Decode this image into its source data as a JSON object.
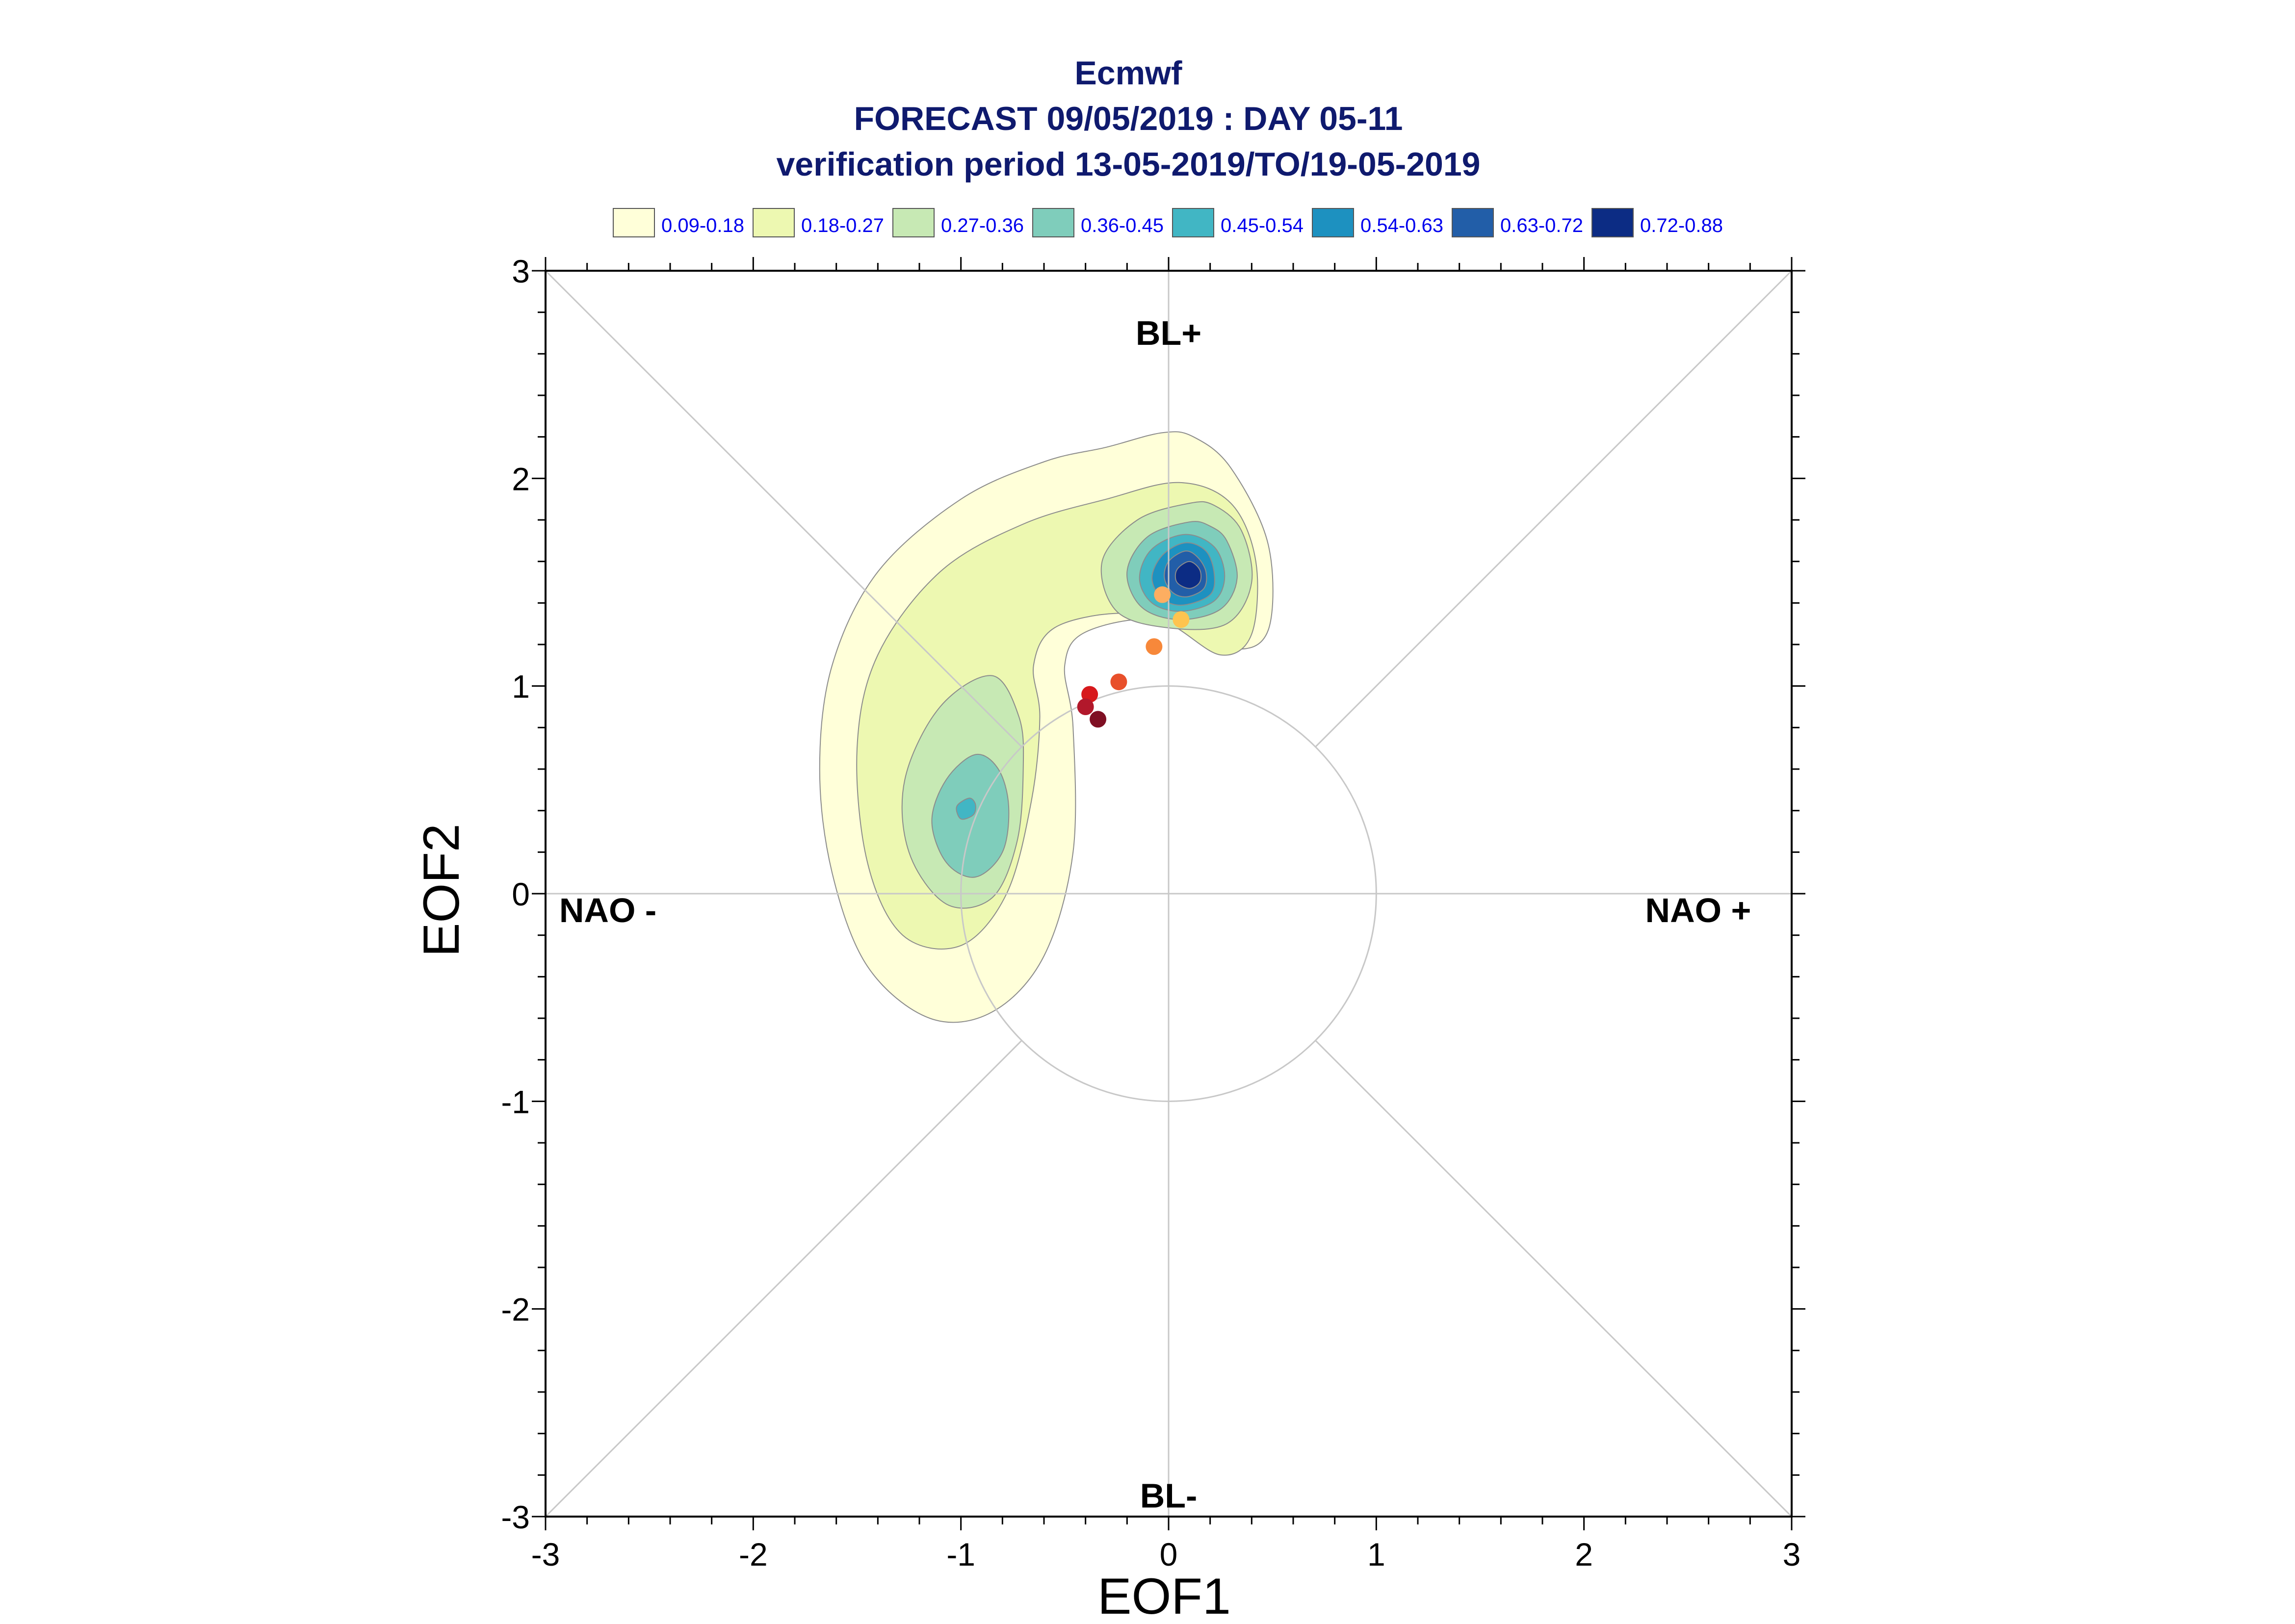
{
  "header": {
    "title": "Ecmwf",
    "subtitle": "FORECAST 09/05/2019 : DAY 05-11",
    "period": "verification period 13-05-2019/TO/19-05-2019"
  },
  "chart_data": {
    "type": "scatter",
    "title": "Ecmwf",
    "subtitle": "FORECAST 09/05/2019 : DAY 05-11",
    "verification_period": "verification period 13-05-2019/TO/19-05-2019",
    "xlabel": "EOF1",
    "ylabel": "EOF2",
    "xlim": [
      -3,
      3
    ],
    "ylim": [
      -3,
      3
    ],
    "xticks": [
      "-3",
      "-2",
      "-1",
      "0",
      "1",
      "2",
      "3"
    ],
    "yticks": [
      "-3",
      "-2",
      "-1",
      "0",
      "1",
      "2",
      "3"
    ],
    "grid": "crosshair and diagonals through origin, unit circle",
    "legend_position": "top",
    "legend": [
      {
        "label": "0.09-0.18",
        "color": "#ffffd9"
      },
      {
        "label": "0.18-0.27",
        "color": "#edf8b1"
      },
      {
        "label": "0.27-0.36",
        "color": "#c7e9b4"
      },
      {
        "label": "0.36-0.45",
        "color": "#7fcdbb"
      },
      {
        "label": "0.45-0.54",
        "color": "#41b6c4"
      },
      {
        "label": "0.54-0.63",
        "color": "#1d91c0"
      },
      {
        "label": "0.63-0.72",
        "color": "#225ea8"
      },
      {
        "label": "0.72-0.88",
        "color": "#0c2c84"
      }
    ],
    "regime_labels": [
      {
        "text": "BL+",
        "x": 0,
        "y": 2.7
      },
      {
        "text": "BL-",
        "x": 0,
        "y": -2.9
      },
      {
        "text": "NAO -",
        "x": -2.7,
        "y": -0.08
      },
      {
        "text": "NAO +",
        "x": 2.55,
        "y": -0.08
      }
    ],
    "density_contours": [
      {
        "level": 0,
        "points": [
          [
            -0.03,
            2.22
          ],
          [
            -0.3,
            2.15
          ],
          [
            -0.6,
            2.08
          ],
          [
            -1.0,
            1.9
          ],
          [
            -1.4,
            1.55
          ],
          [
            -1.62,
            1.1
          ],
          [
            -1.68,
            0.6
          ],
          [
            -1.62,
            0.1
          ],
          [
            -1.45,
            -0.35
          ],
          [
            -1.15,
            -0.6
          ],
          [
            -0.85,
            -0.57
          ],
          [
            -0.6,
            -0.3
          ],
          [
            -0.46,
            0.2
          ],
          [
            -0.46,
            0.8
          ],
          [
            -0.5,
            1.1
          ],
          [
            -0.4,
            1.26
          ],
          [
            -0.05,
            1.32
          ],
          [
            0.3,
            1.18
          ],
          [
            0.48,
            1.27
          ],
          [
            0.48,
            1.68
          ],
          [
            0.3,
            2.05
          ],
          [
            0.12,
            2.2
          ]
        ]
      },
      {
        "level": 1,
        "points": [
          [
            -0.3,
            1.9
          ],
          [
            -0.7,
            1.78
          ],
          [
            -1.1,
            1.55
          ],
          [
            -1.4,
            1.15
          ],
          [
            -1.5,
            0.7
          ],
          [
            -1.45,
            0.15
          ],
          [
            -1.28,
            -0.2
          ],
          [
            -1.0,
            -0.25
          ],
          [
            -0.78,
            0.0
          ],
          [
            -0.66,
            0.45
          ],
          [
            -0.62,
            0.85
          ],
          [
            -0.65,
            1.1
          ],
          [
            -0.55,
            1.28
          ],
          [
            -0.25,
            1.35
          ],
          [
            0.0,
            1.3
          ],
          [
            0.25,
            1.15
          ],
          [
            0.4,
            1.25
          ],
          [
            0.42,
            1.6
          ],
          [
            0.3,
            1.88
          ],
          [
            0.05,
            1.98
          ]
        ]
      },
      {
        "level": 2,
        "points": [
          [
            -0.85,
            1.05
          ],
          [
            -1.1,
            0.9
          ],
          [
            -1.27,
            0.55
          ],
          [
            -1.25,
            0.2
          ],
          [
            -1.07,
            -0.05
          ],
          [
            -0.85,
            -0.02
          ],
          [
            -0.73,
            0.25
          ],
          [
            -0.7,
            0.6
          ],
          [
            -0.72,
            0.85
          ]
        ]
      },
      {
        "level": 2,
        "points": [
          [
            0.1,
            1.88
          ],
          [
            -0.15,
            1.8
          ],
          [
            -0.32,
            1.6
          ],
          [
            -0.25,
            1.36
          ],
          [
            0.0,
            1.28
          ],
          [
            0.28,
            1.3
          ],
          [
            0.4,
            1.5
          ],
          [
            0.35,
            1.75
          ],
          [
            0.22,
            1.87
          ]
        ]
      },
      {
        "level": 3,
        "points": [
          [
            -0.93,
            0.67
          ],
          [
            -1.07,
            0.55
          ],
          [
            -1.14,
            0.35
          ],
          [
            -1.07,
            0.15
          ],
          [
            -0.93,
            0.08
          ],
          [
            -0.8,
            0.2
          ],
          [
            -0.77,
            0.42
          ],
          [
            -0.82,
            0.6
          ]
        ]
      },
      {
        "level": 3,
        "points": [
          [
            0.1,
            1.79
          ],
          [
            -0.1,
            1.72
          ],
          [
            -0.2,
            1.55
          ],
          [
            -0.13,
            1.38
          ],
          [
            0.05,
            1.32
          ],
          [
            0.25,
            1.37
          ],
          [
            0.33,
            1.52
          ],
          [
            0.28,
            1.7
          ],
          [
            0.2,
            1.77
          ]
        ]
      },
      {
        "level": 4,
        "points": [
          [
            -0.96,
            0.46
          ],
          [
            -1.02,
            0.42
          ],
          [
            -1.0,
            0.36
          ],
          [
            -0.94,
            0.38
          ],
          [
            -0.93,
            0.43
          ]
        ]
      },
      {
        "level": 4,
        "points": [
          [
            0.08,
            1.73
          ],
          [
            -0.08,
            1.66
          ],
          [
            -0.14,
            1.52
          ],
          [
            -0.08,
            1.4
          ],
          [
            0.06,
            1.36
          ],
          [
            0.22,
            1.41
          ],
          [
            0.27,
            1.53
          ],
          [
            0.22,
            1.67
          ]
        ]
      },
      {
        "level": 5,
        "points": [
          [
            0.08,
            1.69
          ],
          [
            -0.03,
            1.63
          ],
          [
            -0.08,
            1.52
          ],
          [
            -0.03,
            1.42
          ],
          [
            0.07,
            1.39
          ],
          [
            0.2,
            1.44
          ],
          [
            0.22,
            1.54
          ],
          [
            0.18,
            1.65
          ]
        ]
      },
      {
        "level": 6,
        "points": [
          [
            0.08,
            1.65
          ],
          [
            0.0,
            1.6
          ],
          [
            -0.02,
            1.52
          ],
          [
            0.02,
            1.45
          ],
          [
            0.09,
            1.43
          ],
          [
            0.17,
            1.47
          ],
          [
            0.18,
            1.55
          ],
          [
            0.14,
            1.62
          ]
        ]
      },
      {
        "level": 7,
        "points": [
          [
            0.1,
            1.6
          ],
          [
            0.04,
            1.56
          ],
          [
            0.04,
            1.5
          ],
          [
            0.1,
            1.47
          ],
          [
            0.15,
            1.5
          ],
          [
            0.15,
            1.56
          ]
        ]
      }
    ],
    "points": [
      {
        "x": -0.03,
        "y": 1.44,
        "color": "#fdae61"
      },
      {
        "x": 0.06,
        "y": 1.32,
        "color": "#fec44f"
      },
      {
        "x": -0.07,
        "y": 1.19,
        "color": "#f7883a"
      },
      {
        "x": -0.24,
        "y": 1.02,
        "color": "#e8502b"
      },
      {
        "x": -0.38,
        "y": 0.96,
        "color": "#d7191c"
      },
      {
        "x": -0.4,
        "y": 0.9,
        "color": "#b2182b"
      },
      {
        "x": -0.34,
        "y": 0.84,
        "color": "#7f0f23"
      }
    ]
  }
}
